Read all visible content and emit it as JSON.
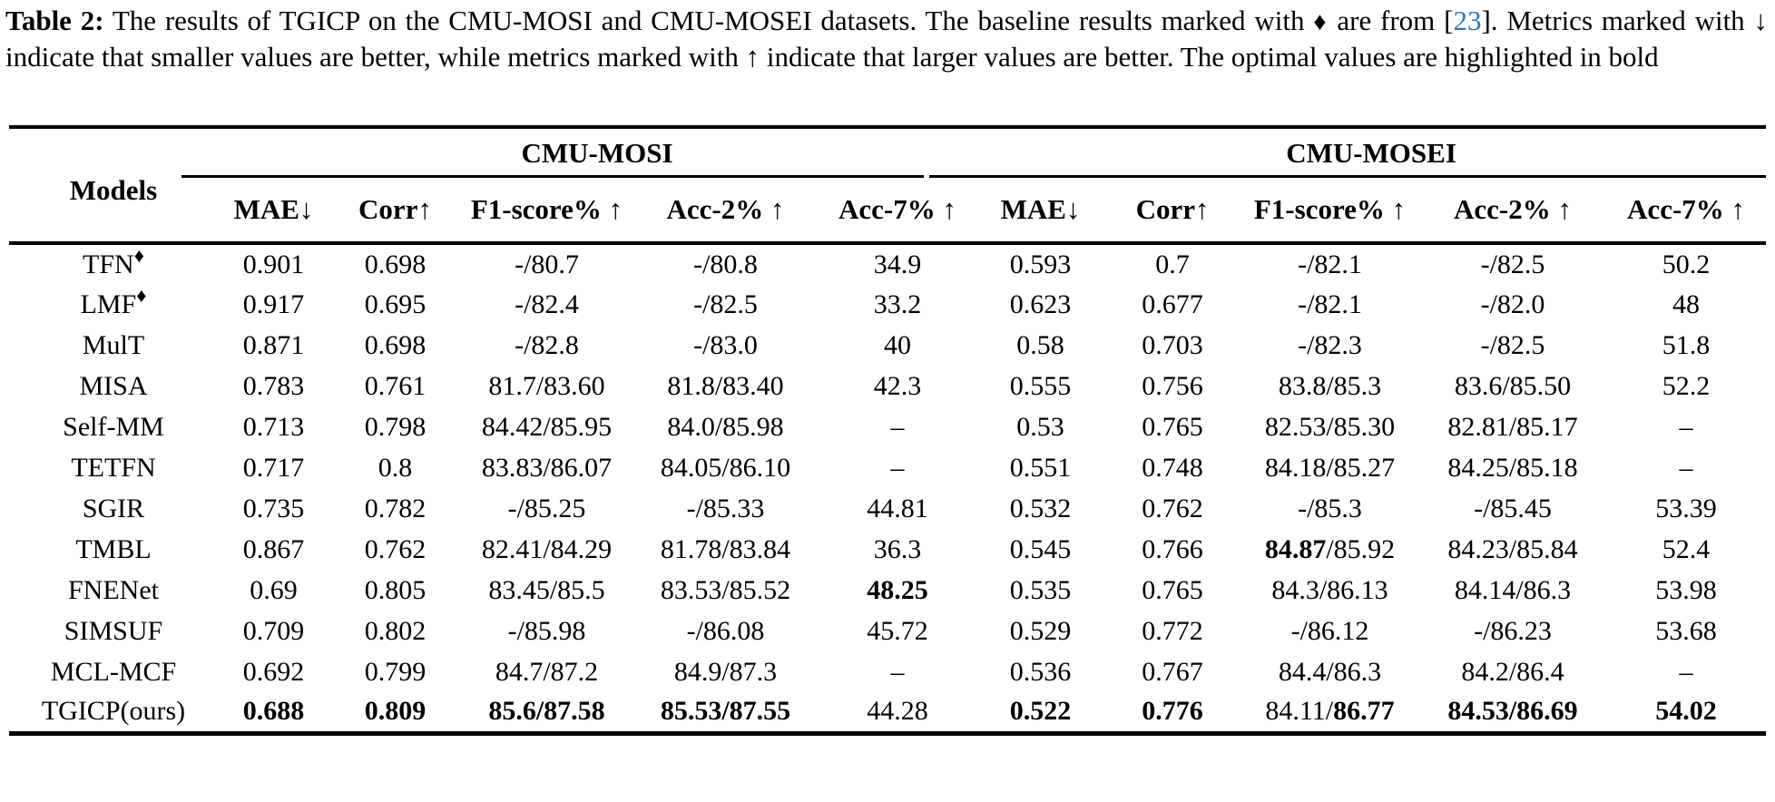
{
  "caption": {
    "label": "Table 2:",
    "part1": "  The results of TGICP on the CMU-MOSI and CMU-MOSEI datasets. The baseline results marked with ",
    "diamond": "♦",
    "part2": " are from [",
    "ref": "23",
    "part3": "]. Metrics marked with ↓ indicate that smaller values are better, while metrics marked with ↑ indicate that larger values are better. The optimal values are highlighted in bold"
  },
  "colors": {
    "citation_link": "#2878b8",
    "text": "#000000",
    "background": "#ffffff"
  },
  "table": {
    "models_header": "Models",
    "groups": [
      {
        "key": "cmu-mosi",
        "label": "CMU-MOSI"
      },
      {
        "key": "cmu-mosei",
        "label": "CMU-MOSEI"
      }
    ],
    "metric_headers": [
      "MAE↓",
      "Corr↑",
      "F1-score% ↑",
      "Acc-2% ↑",
      "Acc-7% ↑"
    ],
    "rows": [
      {
        "model": "TFN",
        "marker": "♦",
        "cells": [
          "0.901",
          "0.698",
          "-/80.7",
          "-/80.8",
          "34.9",
          "0.593",
          "0.7",
          "-/82.1",
          "-/82.5",
          "50.2"
        ]
      },
      {
        "model": "LMF",
        "marker": "♦",
        "cells": [
          "0.917",
          "0.695",
          "-/82.4",
          "-/82.5",
          "33.2",
          "0.623",
          "0.677",
          "-/82.1",
          "-/82.0",
          "48"
        ]
      },
      {
        "model": "MulT",
        "marker": "",
        "cells": [
          "0.871",
          "0.698",
          "-/82.8",
          "-/83.0",
          "40",
          "0.58",
          "0.703",
          "-/82.3",
          "-/82.5",
          "51.8"
        ]
      },
      {
        "model": "MISA",
        "marker": "",
        "cells": [
          "0.783",
          "0.761",
          "81.7/83.60",
          "81.8/83.40",
          "42.3",
          "0.555",
          "0.756",
          "83.8/85.3",
          "83.6/85.50",
          "52.2"
        ]
      },
      {
        "model": "Self-MM",
        "marker": "",
        "cells": [
          "0.713",
          "0.798",
          "84.42/85.95",
          "84.0/85.98",
          "–",
          "0.53",
          "0.765",
          "82.53/85.30",
          "82.81/85.17",
          "–"
        ]
      },
      {
        "model": "TETFN",
        "marker": "",
        "cells": [
          "0.717",
          "0.8",
          "83.83/86.07",
          "84.05/86.10",
          "–",
          "0.551",
          "0.748",
          "84.18/85.27",
          "84.25/85.18",
          "–"
        ]
      },
      {
        "model": "SGIR",
        "marker": "",
        "cells": [
          "0.735",
          "0.782",
          "-/85.25",
          "-/85.33",
          "44.81",
          "0.532",
          "0.762",
          "-/85.3",
          "-/85.45",
          "53.39"
        ]
      },
      {
        "model": "TMBL",
        "marker": "",
        "cells": [
          "0.867",
          "0.762",
          "82.41/84.29",
          "81.78/83.84",
          "36.3",
          "0.545",
          "0.766",
          "**84.87**/85.92",
          "84.23/85.84",
          "52.4"
        ]
      },
      {
        "model": "FNENet",
        "marker": "",
        "cells": [
          "0.69",
          "0.805",
          "83.45/85.5",
          "83.53/85.52",
          "**48.25**",
          "0.535",
          "0.765",
          "84.3/86.13",
          "84.14/86.3",
          "53.98"
        ]
      },
      {
        "model": "SIMSUF",
        "marker": "",
        "cells": [
          "0.709",
          "0.802",
          "-/85.98",
          "-/86.08",
          "45.72",
          "0.529",
          "0.772",
          "-/86.12",
          "-/86.23",
          "53.68"
        ]
      },
      {
        "model": "MCL-MCF",
        "marker": "",
        "cells": [
          "0.692",
          "0.799",
          "84.7/87.2",
          "84.9/87.3",
          "–",
          "0.536",
          "0.767",
          "84.4/86.3",
          "84.2/86.4",
          "–"
        ]
      },
      {
        "model": "TGICP(ours)",
        "marker": "",
        "cells": [
          "**0.688**",
          "**0.809**",
          "**85.6/87.58**",
          "**85.53/87.55**",
          "44.28",
          "**0.522**",
          "**0.776**",
          "84.11/**86.77**",
          "**84.53/86.69**",
          "**54.02**"
        ]
      }
    ]
  }
}
